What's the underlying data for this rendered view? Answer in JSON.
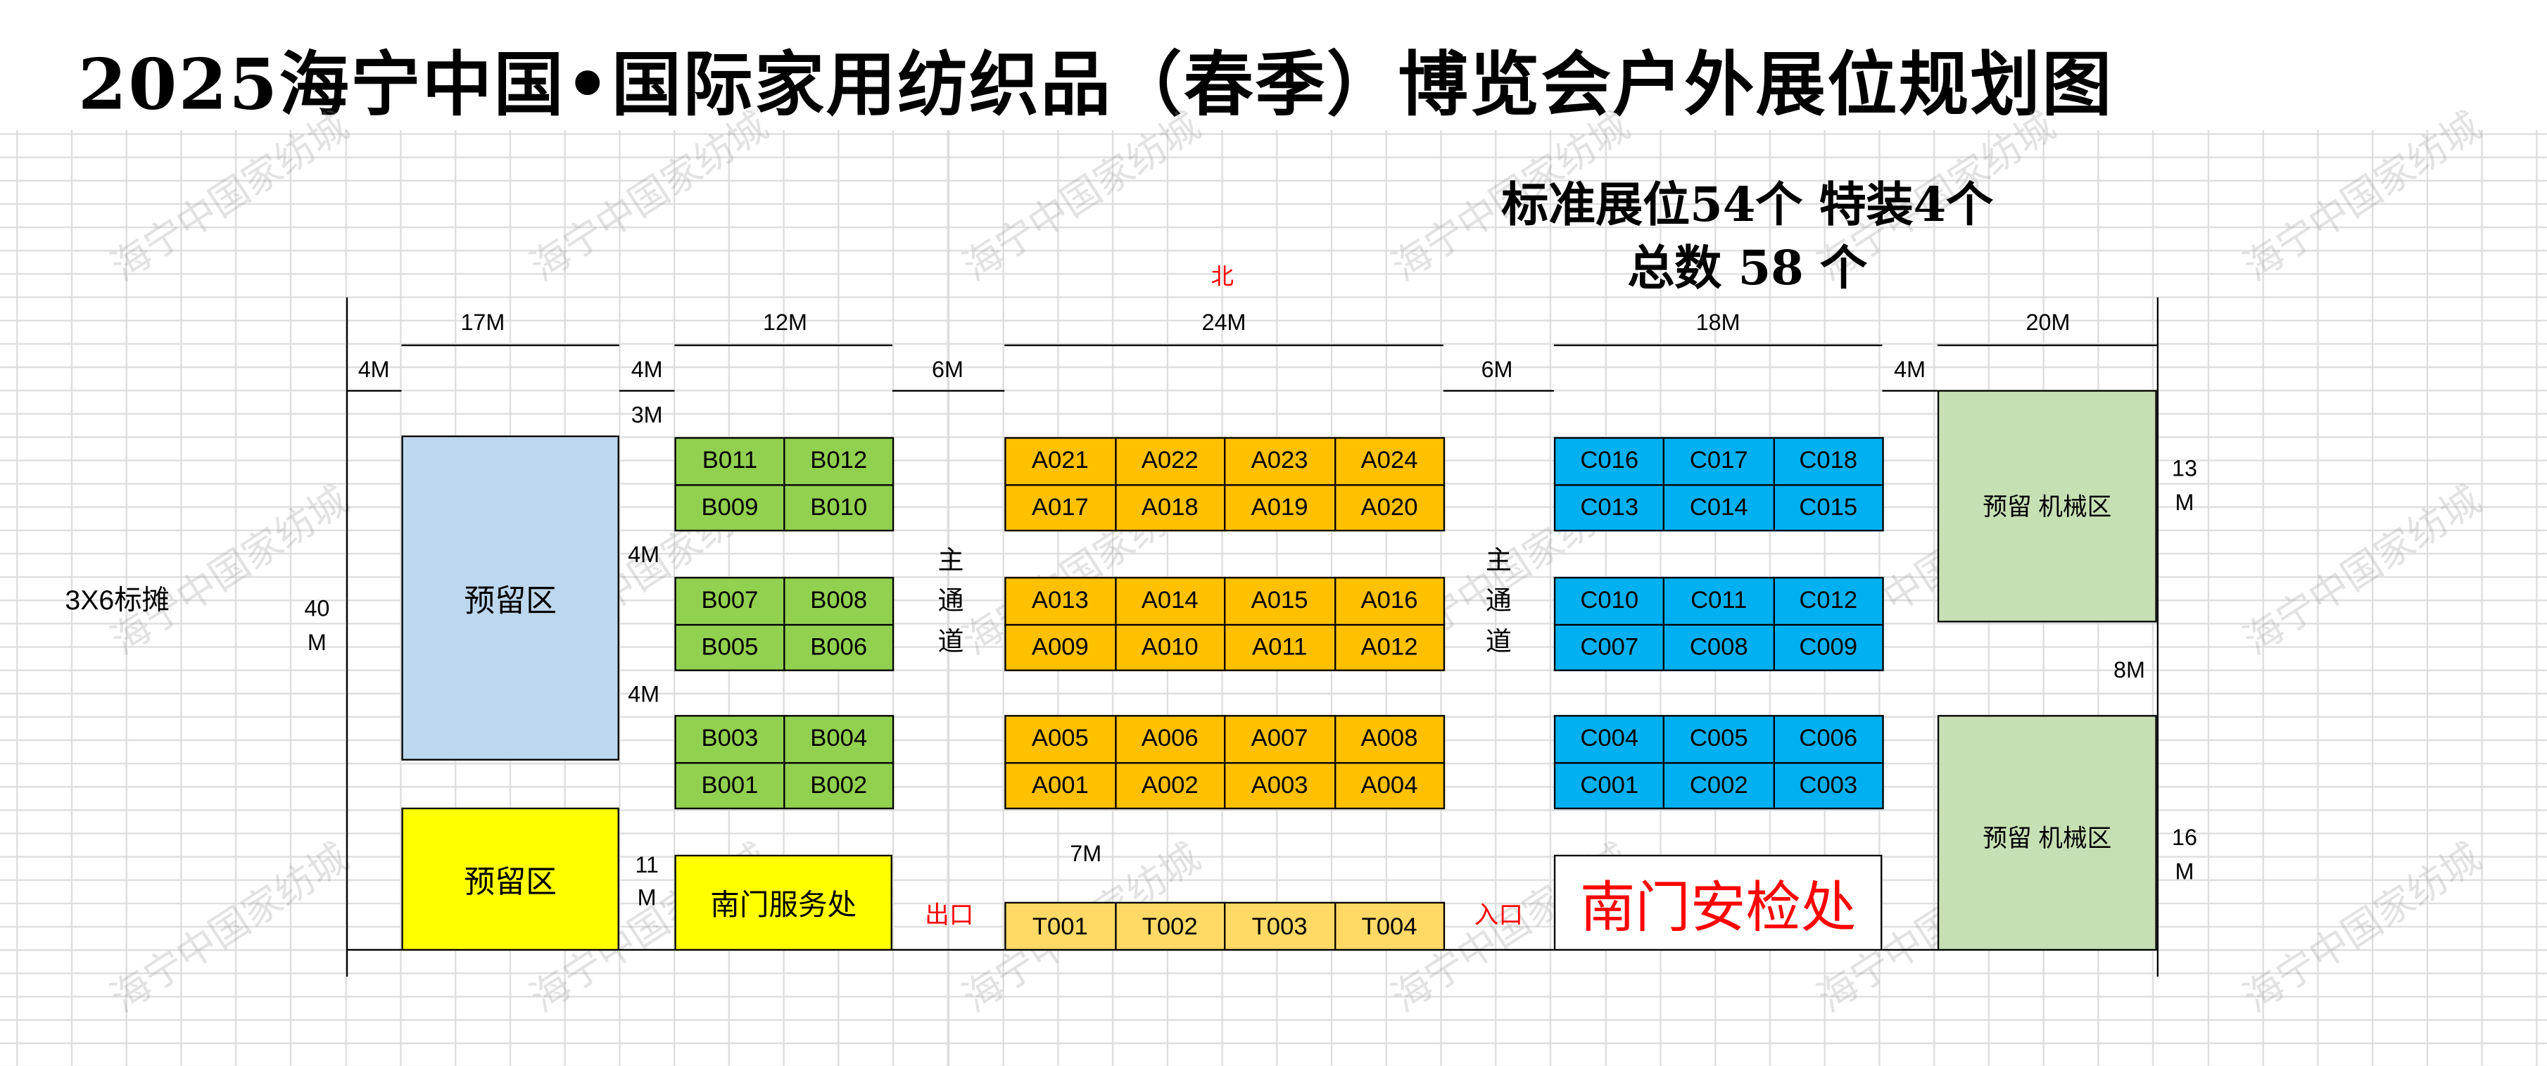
{
  "title": "2025海宁中国•国际家用纺织品（春季）博览会户外展位规划图",
  "summary": {
    "line1": "标准展位54个 特装4个",
    "line2": "总数 58 个"
  },
  "north_label": "北",
  "left_note": "3X6标摊",
  "dimensions": {
    "w17": "17M",
    "w12": "12M",
    "w24": "24M",
    "w18": "18M",
    "w20": "20M",
    "g4a": "4M",
    "g4b": "4M",
    "g6a": "6M",
    "g6b": "6M",
    "g4c": "4M",
    "top3": "3M",
    "gap4a": "4M",
    "gap4b": "4M",
    "h40a": "40",
    "h40b": "M",
    "h11a": "11",
    "h11b": "M",
    "h7": "7M",
    "h13a": "13",
    "h13b": "M",
    "h8": "8M",
    "h16a": "16",
    "h16b": "M"
  },
  "aisles": {
    "main_channel_chars": [
      "主",
      "通",
      "道"
    ]
  },
  "exit_label": "出口",
  "entrance_label": "入口",
  "zones": {
    "reserved_blue": "预留区",
    "reserved_yellow": "预留区",
    "service": "南门服务处",
    "security": "南门安检处",
    "machinery_top": "预留 机械区",
    "machinery_bottom": "预留 机械区"
  },
  "booths": {
    "B": [
      [
        "B011",
        "B012"
      ],
      [
        "B009",
        "B010"
      ],
      [
        "B007",
        "B008"
      ],
      [
        "B005",
        "B006"
      ],
      [
        "B003",
        "B004"
      ],
      [
        "B001",
        "B002"
      ]
    ],
    "A": [
      [
        "A021",
        "A022",
        "A023",
        "A024"
      ],
      [
        "A017",
        "A018",
        "A019",
        "A020"
      ],
      [
        "A013",
        "A014",
        "A015",
        "A016"
      ],
      [
        "A009",
        "A010",
        "A011",
        "A012"
      ],
      [
        "A005",
        "A006",
        "A007",
        "A008"
      ],
      [
        "A001",
        "A002",
        "A003",
        "A004"
      ]
    ],
    "C": [
      [
        "C016",
        "C017",
        "C018"
      ],
      [
        "C013",
        "C014",
        "C015"
      ],
      [
        "C010",
        "C011",
        "C012"
      ],
      [
        "C007",
        "C008",
        "C009"
      ],
      [
        "C004",
        "C005",
        "C006"
      ],
      [
        "C001",
        "C002",
        "C003"
      ]
    ],
    "T": [
      "T001",
      "T002",
      "T003",
      "T004"
    ]
  },
  "colors": {
    "B": "#92d050",
    "A": "#ffc000",
    "C": "#00b0f0",
    "T": "#ffd966",
    "reserved_blue": "#bdd7ee",
    "reserved_yellow": "#ffff00",
    "service": "#ffff00",
    "machinery": "#c6e0b4",
    "accent_red": "#ff0000"
  },
  "watermark": "海宁中国家纺城"
}
